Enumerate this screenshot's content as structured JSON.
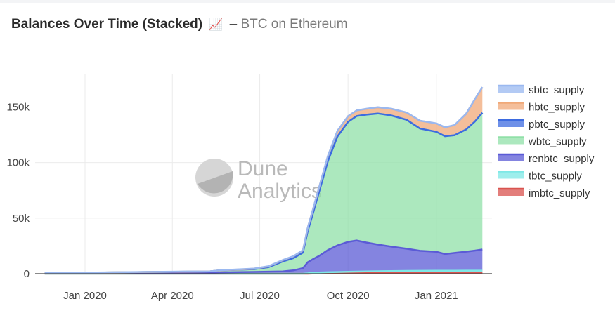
{
  "header": {
    "title": "Balances Over Time (Stacked)",
    "emoji": "📈",
    "separator": "–",
    "subtitle": "BTC on Ethereum"
  },
  "watermark": {
    "line1": "Dune",
    "line2": "Analytics"
  },
  "chart_data": {
    "type": "area",
    "stacked": true,
    "title": "Balances Over Time (Stacked) 📈 – BTC on Ethereum",
    "xlabel": "",
    "ylabel": "",
    "ylim": [
      0,
      180000
    ],
    "xlim": [
      "2019-11-10",
      "2021-02-28"
    ],
    "y_ticks": [
      0,
      50000,
      100000,
      150000
    ],
    "y_tick_labels": [
      "0",
      "50k",
      "100k",
      "150k"
    ],
    "x_ticks": [
      "2020-01-01",
      "2020-04-01",
      "2020-07-01",
      "2020-10-01",
      "2021-01-01"
    ],
    "x_tick_labels": [
      "Jan 2020",
      "Apr 2020",
      "Jul 2020",
      "Oct 2020",
      "Jan 2021"
    ],
    "grid": true,
    "legend_position": "right",
    "x": [
      "2019-11-20",
      "2020-01-01",
      "2020-02-15",
      "2020-04-01",
      "2020-05-10",
      "2020-05-20",
      "2020-06-10",
      "2020-06-25",
      "2020-07-10",
      "2020-07-25",
      "2020-08-05",
      "2020-08-15",
      "2020-08-20",
      "2020-08-25",
      "2020-09-01",
      "2020-09-10",
      "2020-09-20",
      "2020-10-01",
      "2020-10-10",
      "2020-10-20",
      "2020-11-01",
      "2020-11-15",
      "2020-12-01",
      "2020-12-15",
      "2021-01-01",
      "2021-01-10",
      "2021-01-20",
      "2021-02-01",
      "2021-02-10",
      "2021-02-18"
    ],
    "series": [
      {
        "name": "imbtc_supply",
        "color": "#d9534f",
        "values": [
          0,
          0,
          0,
          0,
          0,
          0,
          0,
          0,
          0,
          0,
          0,
          0,
          0,
          200,
          300,
          400,
          500,
          600,
          700,
          800,
          900,
          1000,
          1100,
          1100,
          1200,
          1200,
          1200,
          1200,
          1200,
          1200
        ]
      },
      {
        "name": "tbtc_supply",
        "color": "#7ee8e6",
        "values": [
          0,
          0,
          0,
          0,
          0,
          0,
          0,
          0,
          0,
          0,
          0,
          0,
          300,
          600,
          800,
          900,
          1000,
          1100,
          1200,
          1300,
          1300,
          1400,
          1400,
          1500,
          1500,
          1500,
          1500,
          1600,
          1600,
          1600
        ]
      },
      {
        "name": "renbtc_supply",
        "color": "#5b5bd6",
        "values": [
          200,
          400,
          600,
          800,
          1000,
          1200,
          1400,
          1600,
          1800,
          2000,
          3000,
          5000,
          10000,
          12000,
          15000,
          20000,
          24000,
          27000,
          28000,
          26000,
          24000,
          22000,
          20000,
          18000,
          17000,
          15000,
          16000,
          17000,
          18000,
          19000
        ]
      },
      {
        "name": "wbtc_supply",
        "color": "#90e0a8",
        "values": [
          300,
          500,
          700,
          900,
          1000,
          1800,
          2200,
          2500,
          4000,
          9000,
          11000,
          14000,
          28000,
          40000,
          58000,
          80000,
          98000,
          108000,
          112000,
          115000,
          118000,
          118000,
          116000,
          110000,
          108000,
          106000,
          106000,
          110000,
          116000,
          123000
        ]
      },
      {
        "name": "pbtc_supply",
        "color": "#3d6be0",
        "values": [
          0,
          0,
          0,
          0,
          0,
          0,
          0,
          0,
          0,
          0,
          0,
          0,
          0,
          0,
          0,
          0,
          0,
          0,
          0,
          0,
          0,
          0,
          0,
          0,
          0,
          0,
          0,
          0,
          0,
          0
        ]
      },
      {
        "name": "hbtc_supply",
        "color": "#f0a878",
        "values": [
          0,
          0,
          0,
          0,
          0,
          0,
          200,
          400,
          800,
          1200,
          1600,
          2000,
          3000,
          3500,
          4000,
          4500,
          5000,
          5000,
          5000,
          5200,
          5500,
          6000,
          6500,
          7000,
          7500,
          8000,
          9000,
          14000,
          20000,
          23000
        ]
      },
      {
        "name": "sbtc_supply",
        "color": "#9ab8f0",
        "values": [
          100,
          100,
          100,
          100,
          100,
          100,
          100,
          100,
          100,
          100,
          100,
          100,
          100,
          100,
          100,
          100,
          100,
          100,
          100,
          100,
          100,
          100,
          100,
          100,
          100,
          100,
          100,
          100,
          100,
          100
        ]
      }
    ],
    "legend": [
      "sbtc_supply",
      "hbtc_supply",
      "pbtc_supply",
      "wbtc_supply",
      "renbtc_supply",
      "tbtc_supply",
      "imbtc_supply"
    ]
  }
}
